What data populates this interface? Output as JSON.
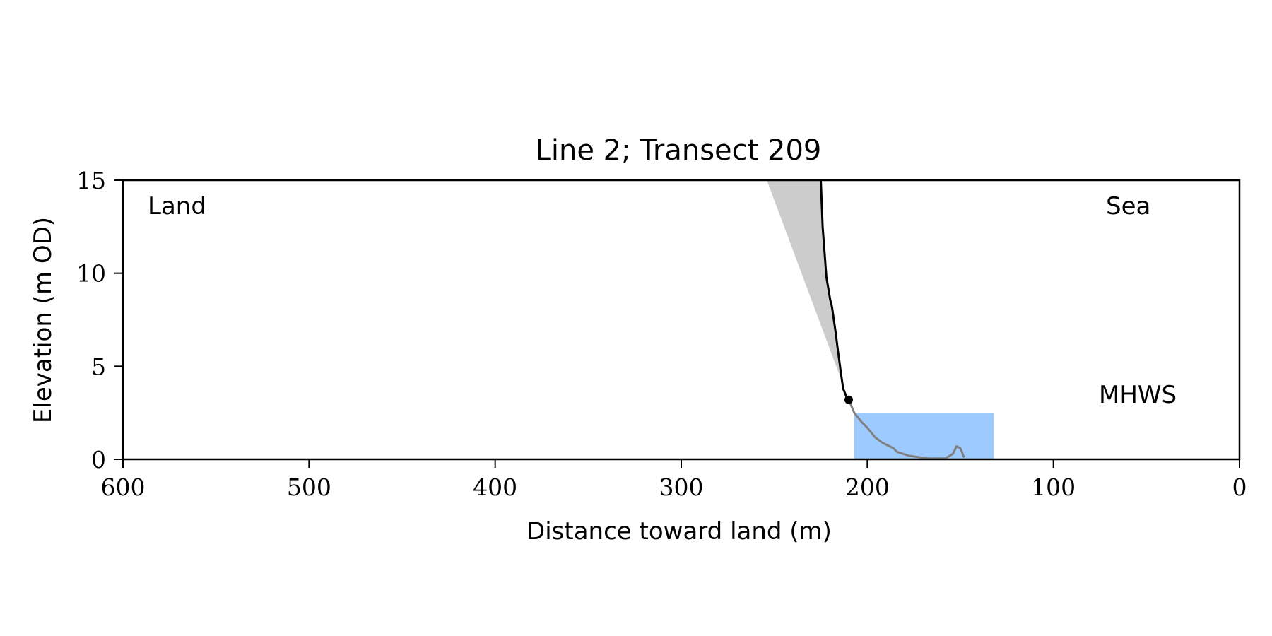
{
  "chart_data": {
    "type": "line",
    "title": "Line 2; Transect 209",
    "xlabel": "Distance toward land (m)",
    "ylabel": "Elevation (m OD)",
    "xlim": [
      600,
      0
    ],
    "ylim": [
      0,
      15
    ],
    "x_ticks": [
      600,
      500,
      400,
      300,
      200,
      100,
      0
    ],
    "y_ticks": [
      0,
      5,
      10,
      15
    ],
    "grid": false,
    "annotations": {
      "land": "Land",
      "sea": "Sea",
      "mhws": "MHWS"
    },
    "colors": {
      "cliff_line": "#000000",
      "beach_line": "#808080",
      "uncertainty_fill": "#cccccc",
      "water_fill": "#9dcbff",
      "mhws_text": "#6699cc"
    },
    "series": [
      {
        "role": "cliff-profile",
        "points": [
          [
            225,
            15
          ],
          [
            224,
            12.5
          ],
          [
            222,
            9.8
          ],
          [
            220,
            8.6
          ],
          [
            219,
            8.2
          ],
          [
            217,
            6.8
          ],
          [
            216,
            6.0
          ],
          [
            214,
            4.5
          ],
          [
            213,
            3.8
          ],
          [
            211,
            3.3
          ],
          [
            210,
            3.2
          ]
        ]
      },
      {
        "role": "beach-profile",
        "points": [
          [
            210,
            3.2
          ],
          [
            207,
            2.5
          ],
          [
            203,
            2.0
          ],
          [
            200,
            1.7
          ],
          [
            196,
            1.2
          ],
          [
            192,
            0.9
          ],
          [
            188,
            0.7
          ],
          [
            186,
            0.6
          ],
          [
            184,
            0.4
          ],
          [
            181,
            0.3
          ],
          [
            178,
            0.2
          ],
          [
            175,
            0.15
          ],
          [
            171,
            0.1
          ],
          [
            167,
            0.05
          ],
          [
            162,
            0.05
          ],
          [
            158,
            0.05
          ],
          [
            154,
            0.3
          ],
          [
            152,
            0.7
          ],
          [
            150,
            0.6
          ],
          [
            148,
            0.1
          ]
        ]
      }
    ],
    "uncertainty_band": [
      [
        254,
        15
      ],
      [
        225,
        15
      ],
      [
        224,
        12.5
      ],
      [
        222,
        9.8
      ],
      [
        220,
        8.6
      ],
      [
        219,
        8.2
      ],
      [
        217,
        6.8
      ],
      [
        216,
        6.0
      ],
      [
        214,
        4.5
      ],
      [
        213,
        3.8
      ],
      [
        211,
        3.3
      ],
      [
        210,
        3.2
      ]
    ],
    "toe_point": [
      210,
      3.2
    ],
    "water_area": {
      "x_start": 132,
      "x_end": 207,
      "top": 2.5
    }
  }
}
